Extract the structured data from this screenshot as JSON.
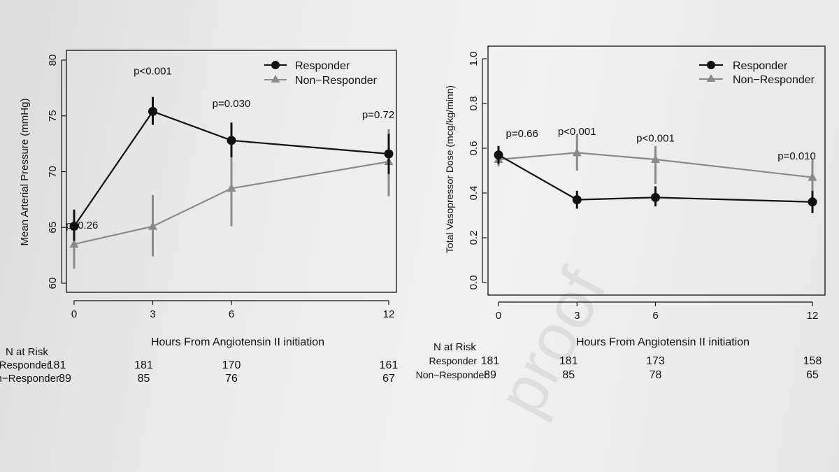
{
  "watermark": "proof",
  "chart_data": [
    {
      "type": "line",
      "xlabel": "Hours From Angiotensin II initiation",
      "ylabel": "Mean Arterial Pressure (mmHg)",
      "x": [
        0,
        3,
        6,
        12
      ],
      "xlim": [
        0,
        12
      ],
      "ylim": [
        60,
        80
      ],
      "yticks": [
        60,
        65,
        70,
        75,
        80
      ],
      "legend_position": "top-right",
      "series": [
        {
          "name": "Responder",
          "color": "#111111",
          "marker": "circle",
          "values": [
            65.1,
            75.4,
            72.8,
            71.6
          ],
          "err_low": [
            63.8,
            74.2,
            71.3,
            69.8
          ],
          "err_high": [
            66.6,
            76.7,
            74.4,
            73.4
          ]
        },
        {
          "name": "Non−Responder",
          "color": "#8a8a8a",
          "marker": "triangle",
          "values": [
            63.5,
            65.1,
            68.5,
            70.9
          ],
          "err_low": [
            61.3,
            62.4,
            65.1,
            67.8
          ],
          "err_high": [
            66.0,
            67.9,
            71.5,
            73.8
          ]
        }
      ],
      "annotations": [
        {
          "text": "p=0.26",
          "x": 0.3,
          "y": 64.9
        },
        {
          "text": "p<0.001",
          "x": 3.0,
          "y": 78.7
        },
        {
          "text": "p=0.030",
          "x": 6.0,
          "y": 75.8
        },
        {
          "text": "p=0.72",
          "x": 11.6,
          "y": 74.8
        }
      ],
      "risk_table": {
        "title": "N at Risk",
        "rows": [
          {
            "label": "Responder",
            "values": [
              "181",
              "181",
              "170",
              "161"
            ]
          },
          {
            "label": "Non−Responder",
            "values": [
              "89",
              "85",
              "76",
              "67"
            ]
          }
        ]
      }
    },
    {
      "type": "line",
      "xlabel": "Hours From Angiotensin II initiation",
      "ylabel": "Total Vasopressor Dose (mcg/kg/minn)",
      "x": [
        0,
        3,
        6,
        12
      ],
      "xlim": [
        0,
        12
      ],
      "ylim": [
        0,
        1
      ],
      "yticks": [
        0.0,
        0.2,
        0.4,
        0.6,
        0.8,
        1.0
      ],
      "legend_position": "top-right",
      "series": [
        {
          "name": "Responder",
          "color": "#111111",
          "marker": "circle",
          "values": [
            0.57,
            0.37,
            0.38,
            0.36
          ],
          "err_low": [
            0.53,
            0.33,
            0.34,
            0.31
          ],
          "err_high": [
            0.61,
            0.41,
            0.43,
            0.41
          ]
        },
        {
          "name": "Non−Responder",
          "color": "#8a8a8a",
          "marker": "triangle",
          "values": [
            0.55,
            0.58,
            0.55,
            0.47
          ],
          "err_low": [
            0.52,
            0.5,
            0.44,
            0.37
          ],
          "err_high": [
            0.58,
            0.66,
            0.61,
            0.55
          ]
        }
      ],
      "annotations": [
        {
          "text": "p=0.66",
          "x": 0.9,
          "y": 0.65
        },
        {
          "text": "p<0.001",
          "x": 3.0,
          "y": 0.66
        },
        {
          "text": "p<0.001",
          "x": 6.0,
          "y": 0.63
        },
        {
          "text": "p=0.010",
          "x": 11.4,
          "y": 0.55
        }
      ],
      "risk_table": {
        "title": "N at Risk",
        "rows": [
          {
            "label": "Responder",
            "values": [
              "181",
              "181",
              "173",
              "158"
            ]
          },
          {
            "label": "Non−Responder",
            "values": [
              "89",
              "85",
              "78",
              "65"
            ]
          }
        ]
      }
    }
  ]
}
